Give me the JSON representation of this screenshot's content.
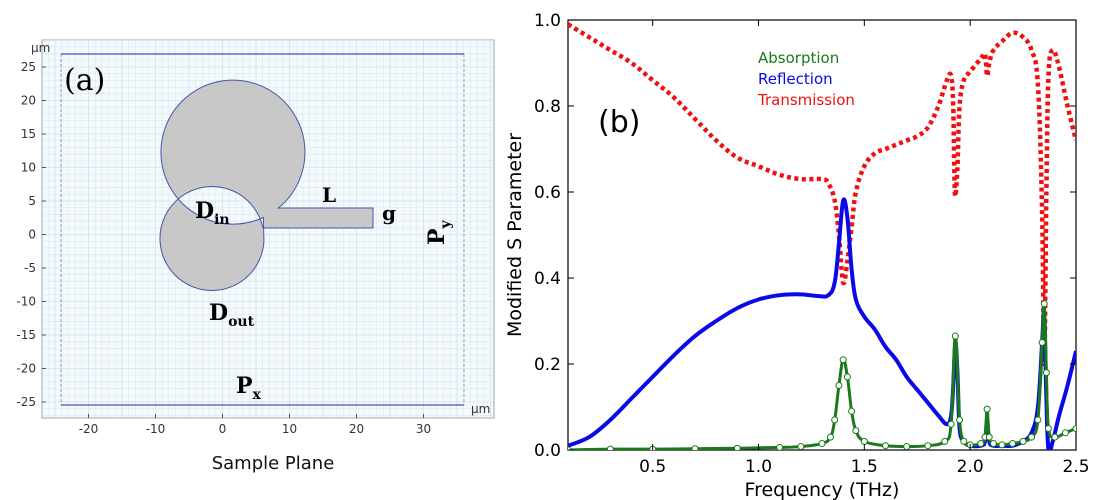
{
  "left_panel": {
    "panel_label": "(a)",
    "unit_top": "μm",
    "unit_right": "μm",
    "y_ticks": [
      {
        "value": 25,
        "label": "25"
      },
      {
        "value": 20,
        "label": "20"
      },
      {
        "value": 15,
        "label": "15"
      },
      {
        "value": 10,
        "label": "10"
      },
      {
        "value": 5,
        "label": "5"
      },
      {
        "value": 0,
        "label": "0"
      },
      {
        "value": -5,
        "label": "-5"
      },
      {
        "value": -10,
        "label": "-10"
      },
      {
        "value": -15,
        "label": "-15"
      },
      {
        "value": -20,
        "label": "-20"
      },
      {
        "value": -25,
        "label": "-25"
      }
    ],
    "x_ticks": [
      {
        "value": -20,
        "label": "-20"
      },
      {
        "value": -10,
        "label": "-10"
      },
      {
        "value": 0,
        "label": "0"
      },
      {
        "value": 10,
        "label": "10"
      },
      {
        "value": 20,
        "label": "20"
      },
      {
        "value": 30,
        "label": "30"
      }
    ],
    "caption": "Sample Plane",
    "labels": {
      "L": "L",
      "g": "g",
      "D_in": "D",
      "D_in_sub": "in",
      "D_out": "D",
      "D_out_sub": "out",
      "P_x": "P",
      "P_x_sub": "x",
      "P_y": "P",
      "P_y_sub": "y"
    },
    "colors": {
      "grid": "#cfe1ee",
      "plot_bg": "#f4f9fc",
      "shape": "#c8c8c8",
      "shape_edge": "#4455aa",
      "period_line": "#4455aa"
    }
  },
  "chart_data": {
    "type": "line",
    "panel_label": "(b)",
    "xlabel": "Frequency (THz)",
    "ylabel": "Modified S Parameter",
    "xlim": [
      0.1,
      2.5
    ],
    "ylim": [
      0.0,
      1.0
    ],
    "x_ticks": [
      "0.5",
      "1.0",
      "1.5",
      "2.0",
      "2.5"
    ],
    "y_ticks": [
      "0.0",
      "0.2",
      "0.4",
      "0.6",
      "0.8",
      "1.0"
    ],
    "grid": false,
    "legend_placement": "top-center",
    "series": [
      {
        "name": "Absorption",
        "color": "#1a7a1a",
        "style": "solid-with-hollow-markers",
        "x": [
          0.1,
          0.3,
          0.5,
          0.7,
          0.9,
          1.1,
          1.2,
          1.3,
          1.34,
          1.36,
          1.38,
          1.4,
          1.42,
          1.44,
          1.46,
          1.5,
          1.6,
          1.7,
          1.8,
          1.88,
          1.91,
          1.93,
          1.95,
          1.97,
          2.0,
          2.05,
          2.07,
          2.08,
          2.09,
          2.11,
          2.15,
          2.2,
          2.25,
          2.29,
          2.32,
          2.34,
          2.35,
          2.36,
          2.37,
          2.4,
          2.45,
          2.5
        ],
        "values": [
          0.0,
          0.002,
          0.002,
          0.003,
          0.004,
          0.006,
          0.008,
          0.015,
          0.03,
          0.07,
          0.15,
          0.21,
          0.17,
          0.09,
          0.045,
          0.02,
          0.01,
          0.008,
          0.01,
          0.02,
          0.06,
          0.265,
          0.07,
          0.02,
          0.012,
          0.015,
          0.03,
          0.095,
          0.03,
          0.015,
          0.012,
          0.015,
          0.02,
          0.03,
          0.07,
          0.25,
          0.34,
          0.18,
          0.05,
          0.03,
          0.04,
          0.05
        ]
      },
      {
        "name": "Reflection",
        "color": "#0a0ae6",
        "style": "solid",
        "x": [
          0.1,
          0.2,
          0.3,
          0.4,
          0.5,
          0.6,
          0.7,
          0.8,
          0.9,
          1.0,
          1.1,
          1.2,
          1.28,
          1.33,
          1.36,
          1.38,
          1.4,
          1.42,
          1.44,
          1.46,
          1.5,
          1.55,
          1.6,
          1.65,
          1.7,
          1.75,
          1.8,
          1.85,
          1.89,
          1.91,
          1.92,
          1.93,
          1.94,
          1.95,
          1.97,
          2.0,
          2.05,
          2.07,
          2.08,
          2.09,
          2.11,
          2.15,
          2.2,
          2.25,
          2.29,
          2.32,
          2.34,
          2.35,
          2.36,
          2.37,
          2.39,
          2.42,
          2.46,
          2.5
        ],
        "values": [
          0.01,
          0.03,
          0.07,
          0.12,
          0.17,
          0.22,
          0.265,
          0.3,
          0.33,
          0.35,
          0.36,
          0.362,
          0.358,
          0.36,
          0.39,
          0.48,
          0.58,
          0.54,
          0.42,
          0.35,
          0.31,
          0.28,
          0.24,
          0.21,
          0.17,
          0.14,
          0.11,
          0.08,
          0.06,
          0.08,
          0.15,
          0.25,
          0.18,
          0.05,
          0.02,
          0.01,
          0.01,
          0.02,
          0.07,
          0.02,
          0.01,
          0.01,
          0.01,
          0.02,
          0.04,
          0.1,
          0.25,
          0.32,
          0.12,
          0.0,
          0.02,
          0.08,
          0.15,
          0.23
        ]
      },
      {
        "name": "Transmission",
        "color": "#ee1111",
        "style": "dotted",
        "x": [
          0.1,
          0.2,
          0.3,
          0.4,
          0.5,
          0.6,
          0.7,
          0.8,
          0.9,
          1.0,
          1.1,
          1.2,
          1.3,
          1.33,
          1.36,
          1.38,
          1.4,
          1.42,
          1.44,
          1.46,
          1.5,
          1.55,
          1.6,
          1.65,
          1.7,
          1.75,
          1.8,
          1.85,
          1.89,
          1.91,
          1.92,
          1.925,
          1.93,
          1.94,
          1.95,
          1.97,
          2.0,
          2.05,
          2.07,
          2.08,
          2.09,
          2.11,
          2.15,
          2.2,
          2.25,
          2.29,
          2.32,
          2.34,
          2.35,
          2.36,
          2.37,
          2.39,
          2.42,
          2.46,
          2.5
        ],
        "values": [
          0.99,
          0.96,
          0.93,
          0.9,
          0.86,
          0.82,
          0.77,
          0.72,
          0.68,
          0.66,
          0.64,
          0.63,
          0.63,
          0.62,
          0.58,
          0.5,
          0.39,
          0.44,
          0.52,
          0.6,
          0.66,
          0.69,
          0.7,
          0.71,
          0.72,
          0.73,
          0.75,
          0.8,
          0.86,
          0.87,
          0.8,
          0.65,
          0.59,
          0.66,
          0.8,
          0.86,
          0.88,
          0.91,
          0.92,
          0.87,
          0.9,
          0.93,
          0.95,
          0.97,
          0.96,
          0.93,
          0.85,
          0.55,
          0.2,
          0.6,
          0.87,
          0.93,
          0.89,
          0.8,
          0.72
        ]
      }
    ]
  }
}
